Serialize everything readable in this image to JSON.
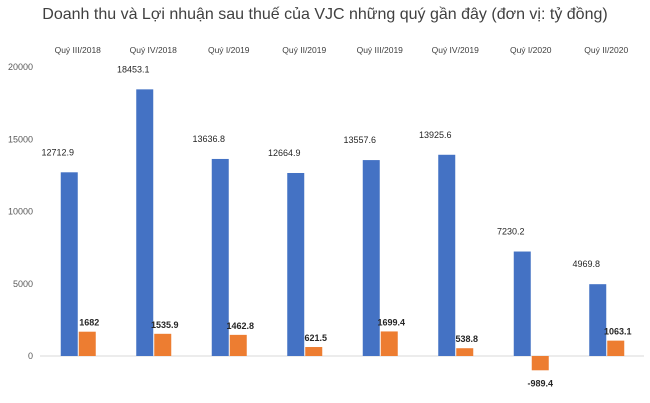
{
  "chart_data": {
    "type": "bar",
    "title": "Doanh thu và Lợi nhuận sau thuế của VJC những quý gần đây (đơn vị: tỷ đồng)",
    "categories": [
      "Quý III/2018",
      "Quý IV/2018",
      "Quý I/2019",
      "Quý II/2019",
      "Quý III/2019",
      "Quý IV/2019",
      "Quý I/2020",
      "Quý II/2020"
    ],
    "series": [
      {
        "values": [
          12712.9,
          18453.1,
          13636.8,
          12664.9,
          13557.6,
          13925.6,
          7230.2,
          4969.8
        ],
        "color": "#4472C4"
      },
      {
        "values": [
          1682,
          1535.9,
          1462.8,
          621.5,
          1699.4,
          538.8,
          -989.4,
          1063.1
        ],
        "color": "#ED7D31"
      }
    ],
    "value_labels": [
      [
        "12712.9",
        "18453.1",
        "13636.8",
        "12664.9",
        "13557.6",
        "13925.6",
        "7230.2",
        "4969.8"
      ],
      [
        "1682",
        "1535.9",
        "1462.8",
        "621.5",
        "1699.4",
        "538.8",
        "-989.4",
        "1063.1"
      ]
    ],
    "yticks": [
      "20000",
      "15000",
      "10000",
      "5000",
      "0"
    ],
    "ylim": [
      -1000,
      20000
    ],
    "grid": false,
    "legend": "none",
    "category_axis": "top"
  }
}
